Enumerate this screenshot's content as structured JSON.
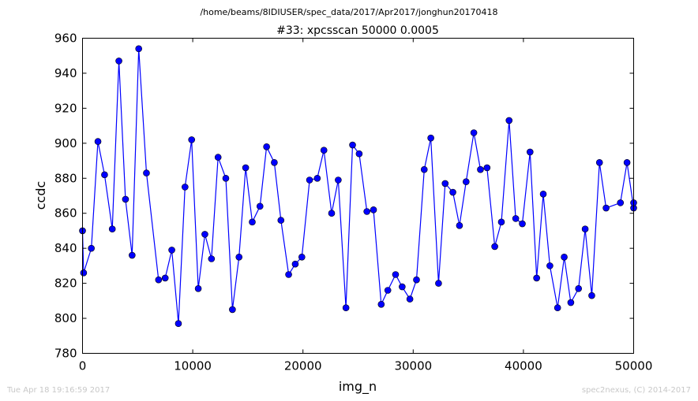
{
  "chart_data": {
    "type": "line",
    "supertitle": "/home/beams/8IDIUSER/spec_data/2017/Apr2017/jonghun20170418",
    "title": "#33: xpcsscan 50000 0.0005",
    "xlabel": "img_n",
    "ylabel": "ccdc",
    "xlim": [
      0,
      50000
    ],
    "ylim": [
      780,
      960
    ],
    "xticks": [
      0,
      10000,
      20000,
      30000,
      40000,
      50000
    ],
    "yticks": [
      780,
      800,
      820,
      840,
      860,
      880,
      900,
      920,
      940,
      960
    ],
    "grid": false,
    "line_color": "#0000ff",
    "marker": "circle",
    "series": [
      {
        "x": [
          0,
          100,
          800,
          1400,
          2000,
          2700,
          3300,
          3900,
          4500,
          5100,
          5800,
          6900,
          7500,
          8100,
          8700,
          9300,
          9900,
          10500,
          11100,
          11700,
          12300,
          13000,
          13600,
          14200,
          14800,
          15400,
          16100,
          16700,
          17400,
          18000,
          18700,
          19300,
          19900,
          20600,
          21300,
          21900,
          22600,
          23200,
          23900,
          24500,
          25100,
          25800,
          26400,
          27100,
          27700,
          28400,
          29000,
          29700,
          30300,
          31000,
          31600,
          32300,
          32900,
          33600,
          34200,
          34800,
          35500,
          36100,
          36700,
          37400,
          38000,
          38700,
          39300,
          39900,
          40600,
          41200,
          41800,
          42400,
          43100,
          43700,
          44300,
          45000,
          45600,
          46200,
          46900,
          47500,
          48800,
          49400,
          50000,
          50000
        ],
        "y": [
          850,
          826,
          840,
          901,
          882,
          851,
          947,
          868,
          836,
          954,
          883,
          822,
          823,
          839,
          797,
          875,
          902,
          817,
          848,
          834,
          892,
          880,
          805,
          835,
          886,
          855,
          864,
          898,
          889,
          856,
          825,
          831,
          835,
          879,
          880,
          896,
          860,
          879,
          806,
          899,
          894,
          861,
          862,
          808,
          816,
          825,
          818,
          811,
          822,
          885,
          903,
          820,
          877,
          872,
          853,
          878,
          906,
          885,
          886,
          841,
          855,
          913,
          857,
          854,
          895,
          823,
          871,
          830,
          806,
          835,
          809,
          817,
          851,
          813,
          889,
          863,
          866,
          889,
          863,
          866
        ]
      }
    ]
  },
  "footer": {
    "timestamp": "Tue Apr 18 19:16:59 2017",
    "credit": "spec2nexus, (C) 2014-2017"
  }
}
